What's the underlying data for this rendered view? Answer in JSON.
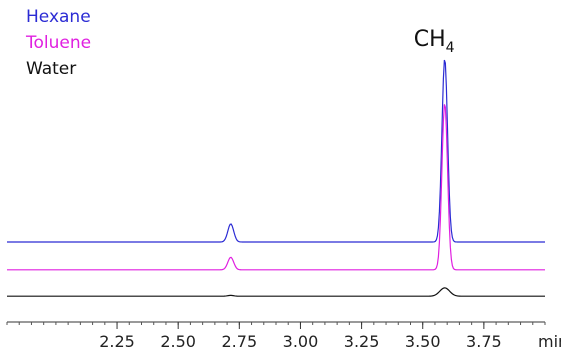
{
  "chart_data": {
    "type": "line",
    "xlabel": "min",
    "ylabel": "",
    "xlim": [
      1.8,
      4.0
    ],
    "x_ticks": [
      "2.25",
      "2.50",
      "2.75",
      "3.00",
      "3.25",
      "3.50",
      "3.75"
    ],
    "x_tick_values": [
      2.25,
      2.5,
      2.75,
      3.0,
      3.25,
      3.5,
      3.75
    ],
    "minor_tick_step": 0.05,
    "grid": false,
    "legend_position": "top-left",
    "annotation": {
      "text": "CH",
      "subscript": "4",
      "x": 3.59
    },
    "series": [
      {
        "name": "Hexane",
        "color": "#2b2bd4",
        "baseline": 0.0,
        "peaks": [
          {
            "x": 2.715,
            "height": 0.065,
            "width": 0.012
          },
          {
            "x": 3.59,
            "height": 0.66,
            "width": 0.0115
          }
        ]
      },
      {
        "name": "Toluene",
        "color": "#e020e0",
        "baseline": -0.1,
        "peaks": [
          {
            "x": 2.715,
            "height": 0.045,
            "width": 0.012
          },
          {
            "x": 3.59,
            "height": 0.6,
            "width": 0.0115
          }
        ]
      },
      {
        "name": "Water",
        "color": "#111111",
        "baseline": -0.195,
        "peaks": [
          {
            "x": 2.715,
            "height": 0.003,
            "width": 0.012
          },
          {
            "x": 3.59,
            "height": 0.03,
            "width": 0.02
          }
        ]
      }
    ]
  }
}
